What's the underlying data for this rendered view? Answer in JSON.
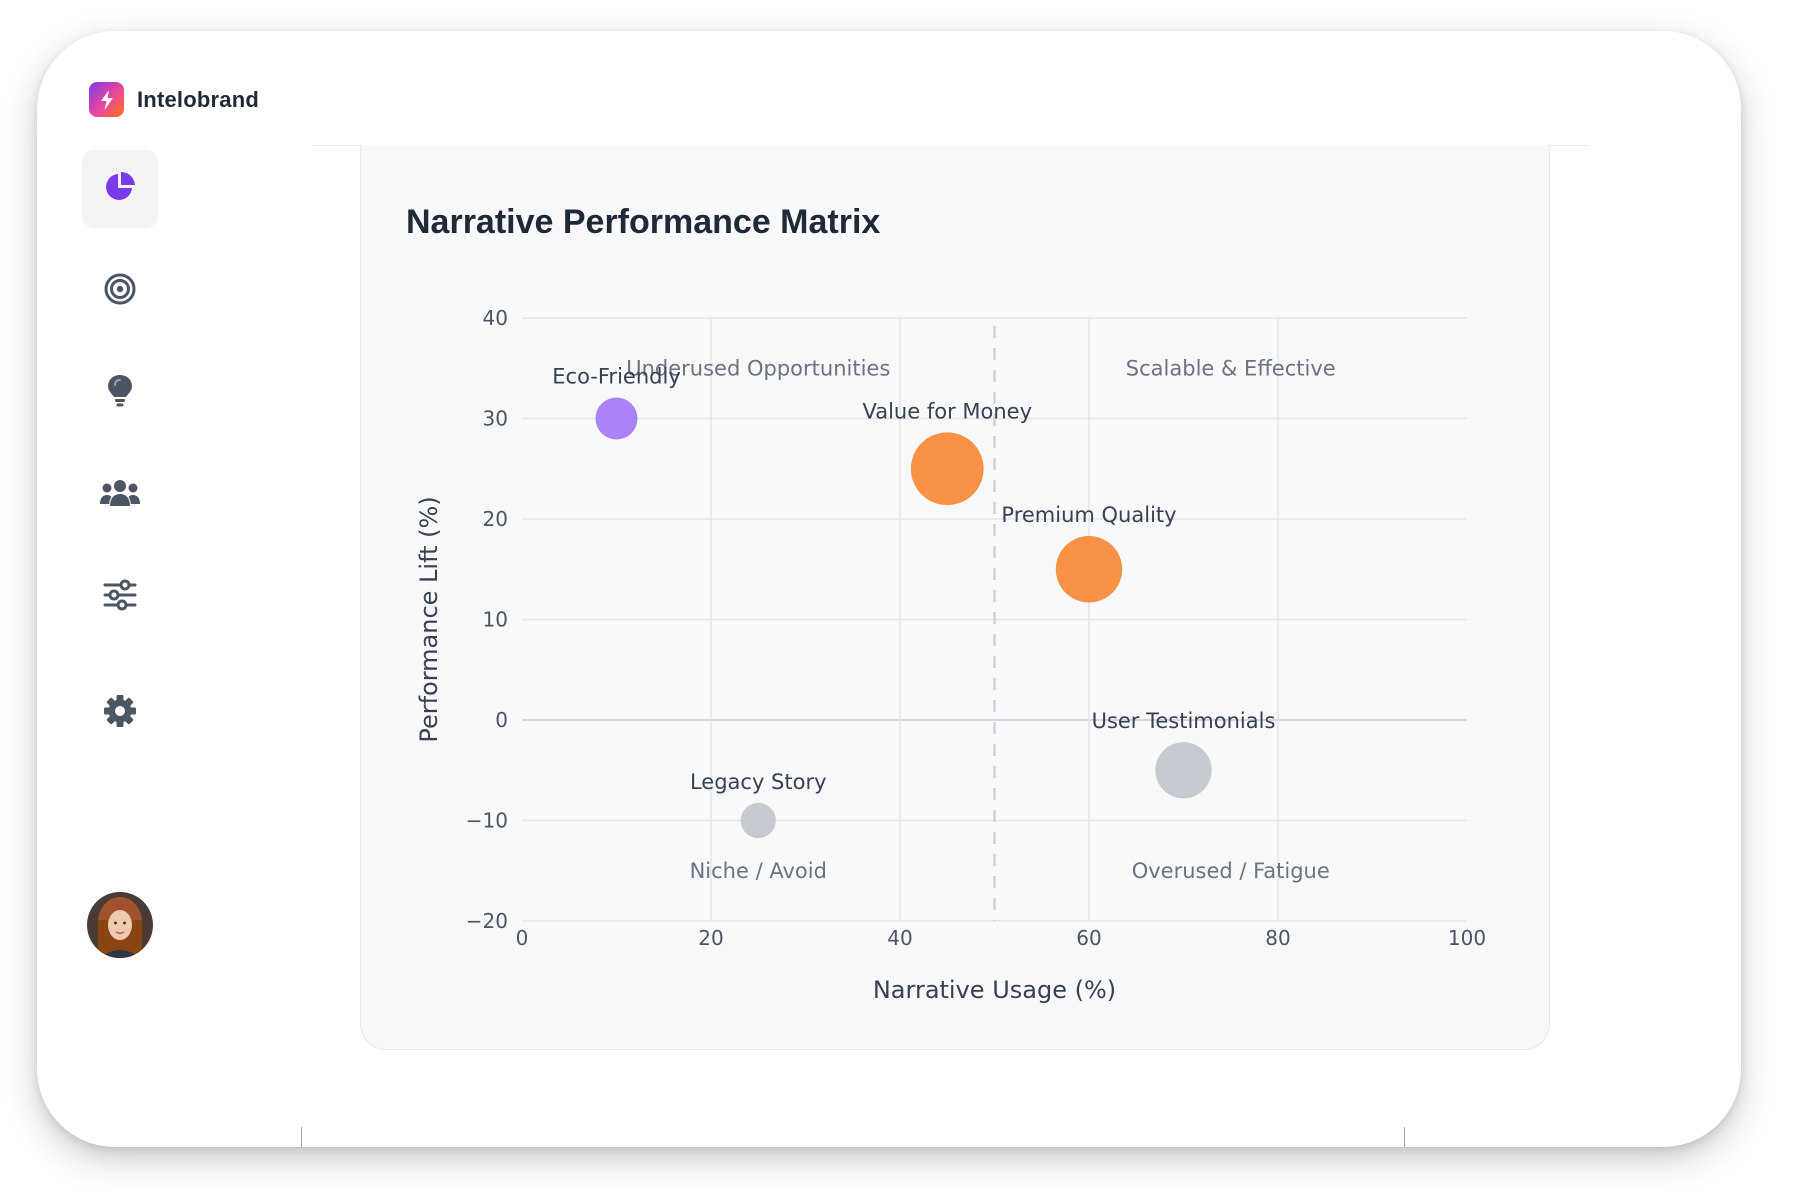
{
  "app": {
    "name": "Intelobrand",
    "logo_icon": "lightning-bolt-icon"
  },
  "sidebar": {
    "items": [
      {
        "icon": "pie-chart-icon",
        "active": true
      },
      {
        "icon": "target-icon",
        "active": false
      },
      {
        "icon": "lightbulb-icon",
        "active": false
      },
      {
        "icon": "users-icon",
        "active": false
      },
      {
        "icon": "sliders-icon",
        "active": false
      },
      {
        "icon": "gear-icon",
        "active": false
      }
    ],
    "avatar": "user-avatar"
  },
  "colors": {
    "accent": "#7c3aed",
    "orange": "#f98b3c",
    "purple": "#a57cf5",
    "gray": "#c3c7cf",
    "icon_gray": "#4b5563"
  },
  "card": {
    "title": "Narrative Performance Matrix"
  },
  "chart_data": {
    "type": "scatter",
    "variant": "bubble",
    "title": "Narrative Performance Matrix",
    "xlabel": "Narrative Usage (%)",
    "ylabel": "Performance Lift (%)",
    "xlim": [
      0,
      100
    ],
    "ylim": [
      -20,
      40
    ],
    "x_ticks": [
      0,
      20,
      40,
      60,
      80,
      100
    ],
    "y_ticks": [
      -20,
      -10,
      0,
      10,
      20,
      30,
      40
    ],
    "y_tick_labels": [
      "−20",
      "−10",
      "0",
      "10",
      "20",
      "30",
      "40"
    ],
    "grid": true,
    "divider_x": 50,
    "quadrant_labels": [
      {
        "text": "Underused Opportunities",
        "x": 25,
        "y": 35
      },
      {
        "text": "Scalable & Effective",
        "x": 75,
        "y": 35
      },
      {
        "text": "Niche / Avoid",
        "x": 25,
        "y": -15
      },
      {
        "text": "Overused / Fatigue",
        "x": 75,
        "y": -15
      }
    ],
    "points": [
      {
        "label": "Eco-Friendly",
        "x": 10,
        "y": 30,
        "size": 1,
        "color": "#a57cf5"
      },
      {
        "label": "Value for Money",
        "x": 45,
        "y": 25,
        "size": 3,
        "color": "#f98b3c"
      },
      {
        "label": "Premium Quality",
        "x": 60,
        "y": 15,
        "size": 2.5,
        "color": "#f98b3c"
      },
      {
        "label": "User Testimonials",
        "x": 70,
        "y": -5,
        "size": 1.8,
        "color": "#c3c7cf"
      },
      {
        "label": "Legacy Story",
        "x": 25,
        "y": -10,
        "size": 0.7,
        "color": "#c3c7cf"
      }
    ]
  }
}
